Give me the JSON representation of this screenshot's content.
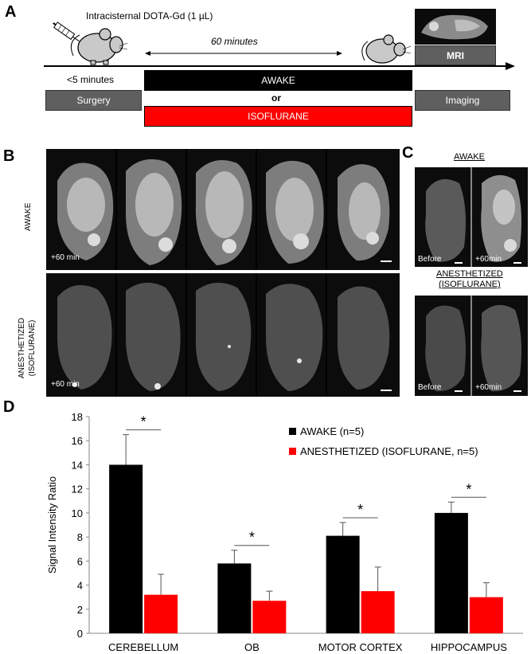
{
  "panelA": {
    "letter": "A",
    "injection_label": "Intracisternal DOTA-Gd (1 µL)",
    "duration_label": "60 minutes",
    "under5_label": "<5 minutes",
    "mri_label": "MRI",
    "surgery_label": "Surgery",
    "imaging_label": "Imaging",
    "awake_label": "AWAKE",
    "or_label": "or",
    "isoflurane_label": "ISOFLURANE"
  },
  "panelB": {
    "letter": "B",
    "awake_row_label": "AWAKE",
    "anesth_row_label_1": "ANESTHETIZED",
    "anesth_row_label_2": "(ISOFLURANE)",
    "awake_time": "+60 min",
    "anesth_time": "+60 min"
  },
  "panelC": {
    "letter": "C",
    "awake_title": "AWAKE",
    "anesth_title_1": "ANESTHETIZED",
    "anesth_title_2": "(ISOFLURANE)",
    "before_label": "Before",
    "after_label": "+60min"
  },
  "panelD": {
    "letter": "D"
  },
  "chart_data": {
    "type": "bar",
    "categories": [
      "CEREBELLUM",
      "OB",
      "MOTOR CORTEX",
      "HIPPOCAMPUS"
    ],
    "series": [
      {
        "name": "AWAKE (n=5)",
        "color": "#000000",
        "values": [
          14.0,
          5.8,
          8.1,
          10.0
        ],
        "errors": [
          2.5,
          1.1,
          1.1,
          0.9
        ]
      },
      {
        "name": "ANESTHETIZED (ISOFLURANE, n=5)",
        "color": "#ff0000",
        "values": [
          3.2,
          2.7,
          3.5,
          3.0
        ],
        "errors": [
          1.7,
          0.8,
          2.0,
          1.2
        ]
      }
    ],
    "significance": [
      "*",
      "*",
      "*",
      "*"
    ],
    "ylabel": "Signal Intensity Ratio",
    "xlabel": "",
    "ylim": [
      0,
      18
    ],
    "yticks": [
      0,
      2,
      4,
      6,
      8,
      10,
      12,
      14,
      16,
      18
    ],
    "legend_position": "top-right",
    "grid": false
  },
  "colors": {
    "awake": "#000000",
    "isoflurane": "#ff0000",
    "neutral": "#5f5f5f"
  }
}
